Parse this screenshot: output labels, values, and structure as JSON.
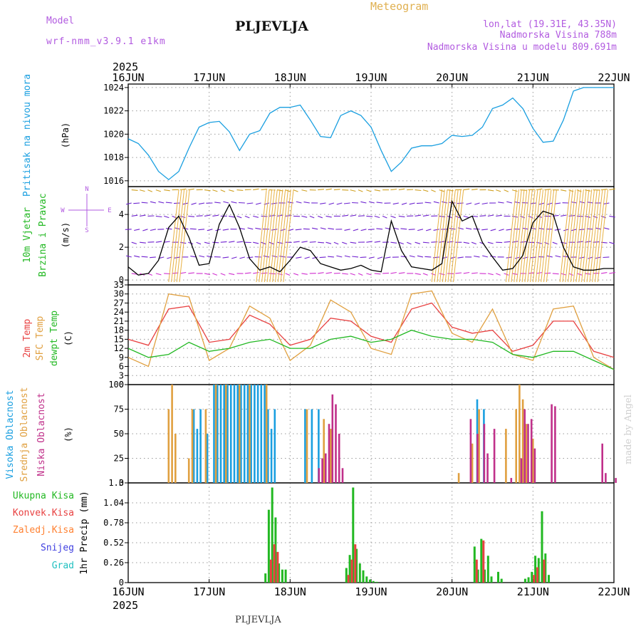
{
  "header": {
    "model_label": "Model",
    "model_name": "wrf-nmm_v3.9.1 e1km",
    "title": "PLJEVLJA",
    "meteogram": "Meteogram",
    "lonlat": "lon,lat (19.31E, 43.35N)",
    "elevation": "Nadmorska Visina 788m",
    "model_elevation": "Nadmorska Visina u modelu 809.691m",
    "year_top": "2025",
    "year_bottom": "2025",
    "footer": "PLJEVLJA",
    "watermark": "made by Angel",
    "colors": {
      "purple": "#b25be0",
      "orange": "#e0b050",
      "title": "#111111"
    }
  },
  "x_ticks": [
    "16JUN",
    "17JUN",
    "18JUN",
    "19JUN",
    "20JUN",
    "21JUN",
    "22JUN"
  ],
  "panels": {
    "pressure": {
      "label": "Pritisak na nivou mora",
      "unit": "(hPa)",
      "label_color": "#1a9fe0"
    },
    "wind": {
      "label1": "10m Vjetar",
      "label2": "Brzina i Pravac",
      "unit": "(m/s)",
      "label_color": "#22b822",
      "compass": [
        "N",
        "W",
        "E",
        "S"
      ],
      "compass_color": "#b25be0"
    },
    "temp": {
      "label1": "2m Temp",
      "label2": "SFC Temp",
      "label3": "dewpt Temp",
      "unit": "(C)",
      "colors": [
        "#e84040",
        "#e0a040",
        "#22b822"
      ]
    },
    "cloud": {
      "label1": "Visoka Oblacnost",
      "label2": "Srednja Oblacnost",
      "label3": "Niska Oblacnost",
      "unit": "(%)",
      "colors": [
        "#1a9fe0",
        "#e0a040",
        "#c0308a"
      ]
    },
    "precip": {
      "labels": [
        "Ukupna Kisa",
        "Konvek.Kisa",
        "Zaledj.Kisa",
        "Snijeg",
        "Grad"
      ],
      "colors": [
        "#22b822",
        "#e84040",
        "#ff8030",
        "#4040e0",
        "#20c0c0"
      ],
      "unit": "1hr Precip (mm)"
    }
  },
  "chart_data": [
    {
      "type": "line",
      "title": "",
      "ylabel": "Pritisak na nivou mora (hPa)",
      "x_range": [
        "2025-06-16 00Z",
        "2025-06-22 00Z"
      ],
      "ylim": [
        1015.5,
        1024.3
      ],
      "yticks": [
        1016,
        1018,
        1020,
        1022,
        1024
      ],
      "series": [
        {
          "name": "Pritisak na nivou mora",
          "color": "#1a9fe0",
          "x_hours": [
            0,
            3,
            6,
            9,
            12,
            15,
            18,
            21,
            24,
            27,
            30,
            33,
            36,
            39,
            42,
            45,
            48,
            51,
            54,
            57,
            60,
            63,
            66,
            69,
            72,
            75,
            78,
            81,
            84,
            87,
            90,
            93,
            96,
            99,
            102,
            105,
            108,
            111,
            114,
            117,
            120,
            123,
            126,
            129,
            132,
            135,
            138,
            141,
            144
          ],
          "values": [
            1019.6,
            1019.2,
            1018.2,
            1016.8,
            1016.1,
            1016.8,
            1018.8,
            1020.6,
            1021.0,
            1021.1,
            1020.2,
            1018.6,
            1020.0,
            1020.3,
            1021.8,
            1022.3,
            1022.3,
            1022.5,
            1021.2,
            1019.8,
            1019.7,
            1021.6,
            1022.0,
            1021.6,
            1020.6,
            1018.6,
            1016.8,
            1017.6,
            1018.8,
            1019.0,
            1019.0,
            1019.2,
            1019.9,
            1019.8,
            1019.9,
            1020.6,
            1022.2,
            1022.5,
            1023.1,
            1022.2,
            1020.5,
            1019.3,
            1019.4,
            1021.2,
            1023.7,
            1024.0,
            1024.0,
            1024.0,
            1024.0
          ]
        }
      ]
    },
    {
      "type": "line",
      "title": "",
      "ylabel": "10m Vjetar Brzina i Pravac (m/s)",
      "ylim": [
        -0.3,
        5.7
      ],
      "yticks": [
        0,
        2,
        4
      ],
      "series": [
        {
          "name": "10m Vjetar",
          "color": "#000000",
          "x_hours": [
            0,
            3,
            6,
            9,
            12,
            15,
            18,
            21,
            24,
            27,
            30,
            33,
            36,
            39,
            42,
            45,
            48,
            51,
            54,
            57,
            60,
            63,
            66,
            69,
            72,
            75,
            78,
            81,
            84,
            87,
            90,
            93,
            96,
            99,
            102,
            105,
            108,
            111,
            114,
            117,
            120,
            123,
            126,
            129,
            132,
            135,
            138,
            141,
            144
          ],
          "values": [
            0.8,
            0.3,
            0.4,
            1.2,
            3.2,
            3.9,
            2.6,
            0.9,
            1.0,
            3.4,
            4.6,
            3.2,
            1.3,
            0.6,
            0.8,
            0.5,
            1.2,
            2.0,
            1.8,
            1.0,
            0.8,
            0.6,
            0.7,
            0.9,
            0.6,
            0.5,
            3.6,
            1.8,
            0.8,
            0.7,
            0.6,
            1.0,
            4.8,
            3.6,
            3.9,
            2.3,
            1.4,
            0.6,
            0.7,
            1.5,
            3.5,
            4.2,
            4.0,
            2.0,
            0.8,
            0.6,
            0.6,
            0.7,
            0.7
          ]
        }
      ]
    },
    {
      "type": "line",
      "title": "",
      "ylabel": "Temp (C)",
      "ylim": [
        0,
        33
      ],
      "yticks": [
        0,
        3,
        6,
        9,
        12,
        15,
        18,
        21,
        24,
        27,
        30,
        33
      ],
      "series": [
        {
          "name": "2m Temp",
          "color": "#e84040",
          "x_hours": [
            0,
            6,
            12,
            18,
            24,
            30,
            36,
            42,
            48,
            54,
            60,
            66,
            72,
            78,
            84,
            90,
            96,
            102,
            108,
            114,
            120,
            126,
            132,
            138,
            144
          ],
          "values": [
            15,
            13,
            25,
            26,
            14,
            15,
            23,
            20,
            13,
            15,
            22,
            21,
            16,
            14,
            25,
            27,
            19,
            17,
            18,
            11,
            13,
            21,
            21,
            11,
            9
          ]
        },
        {
          "name": "SFC Temp",
          "color": "#e0a040",
          "x_hours": [
            0,
            6,
            12,
            18,
            24,
            30,
            36,
            42,
            48,
            54,
            60,
            66,
            72,
            78,
            84,
            90,
            96,
            102,
            108,
            114,
            120,
            126,
            132,
            138,
            144
          ],
          "values": [
            9,
            6,
            30,
            29,
            8,
            12,
            26,
            22,
            8,
            13,
            28,
            24,
            12,
            10,
            30,
            31,
            17,
            14,
            25,
            10,
            8,
            25,
            26,
            9,
            5
          ]
        },
        {
          "name": "dewpt Temp",
          "color": "#22b822",
          "x_hours": [
            0,
            6,
            12,
            18,
            24,
            30,
            36,
            42,
            48,
            54,
            60,
            66,
            72,
            78,
            84,
            90,
            96,
            102,
            108,
            114,
            120,
            126,
            132,
            138,
            144
          ],
          "values": [
            12,
            9,
            10,
            14,
            11,
            12,
            14,
            15,
            12,
            12,
            15,
            16,
            14,
            15,
            18,
            16,
            15,
            15,
            14,
            10,
            9,
            11,
            11,
            8,
            5
          ]
        }
      ]
    },
    {
      "type": "bar",
      "title": "",
      "ylabel": "Oblacnost (%)",
      "ylim": [
        0,
        100
      ],
      "yticks": [
        0,
        25,
        50,
        75,
        100
      ],
      "series": [
        {
          "name": "Visoka Oblacnost",
          "color": "#1a9fe0",
          "x_hours": [
            20,
            21,
            22,
            24,
            26,
            27,
            28,
            29,
            30,
            31,
            32,
            33,
            34,
            35,
            36,
            37,
            38,
            39,
            40,
            41,
            42,
            43,
            44,
            53,
            55,
            57,
            104,
            106
          ],
          "values": [
            75,
            55,
            75,
            50,
            100,
            100,
            100,
            100,
            100,
            100,
            100,
            100,
            100,
            100,
            100,
            100,
            100,
            100,
            100,
            100,
            75,
            55,
            75,
            75,
            75,
            75,
            85,
            75
          ]
        },
        {
          "name": "Srednja Oblacnost",
          "color": "#e0a040",
          "x_hours": [
            12,
            13,
            14,
            18,
            19,
            23,
            26,
            29,
            33,
            36,
            41,
            53,
            58,
            60,
            98,
            102,
            104,
            112,
            115,
            116,
            117,
            118,
            120
          ],
          "values": [
            75,
            100,
            50,
            25,
            75,
            75,
            100,
            100,
            100,
            100,
            100,
            75,
            65,
            55,
            10,
            40,
            75,
            55,
            75,
            100,
            85,
            60,
            45
          ]
        },
        {
          "name": "Niska Oblacnost",
          "color": "#c0308a",
          "x_hours": [
            56,
            57,
            58,
            59,
            60,
            61,
            62,
            63,
            101,
            103,
            105,
            106,
            108,
            113,
            116,
            117,
            118,
            119,
            120,
            125,
            126,
            140,
            141,
            144
          ],
          "values": [
            15,
            25,
            30,
            60,
            90,
            80,
            50,
            15,
            65,
            50,
            60,
            30,
            55,
            5,
            25,
            75,
            60,
            65,
            35,
            80,
            78,
            40,
            10,
            5
          ]
        }
      ]
    },
    {
      "type": "bar",
      "title": "",
      "ylabel": "1hr Precip (mm)",
      "ylim": [
        0,
        1.3
      ],
      "yticks": [
        0,
        0.26,
        0.52,
        0.78,
        1.04,
        1.3
      ],
      "series": [
        {
          "name": "Ukupna Kisa",
          "color": "#22b822",
          "x_hours": [
            41,
            42,
            43,
            44,
            45,
            46,
            47,
            65,
            66,
            67,
            68,
            69,
            70,
            71,
            72,
            73,
            74,
            103,
            104,
            105,
            106,
            107,
            108,
            110,
            111,
            118,
            119,
            120,
            121,
            122,
            123,
            124,
            125
          ],
          "values": [
            0.12,
            0.95,
            1.24,
            0.85,
            0.25,
            0.17,
            0.17,
            0.19,
            0.36,
            1.24,
            0.44,
            0.25,
            0.16,
            0.08,
            0.04,
            0.02,
            0.01,
            0.47,
            0.17,
            0.57,
            0.17,
            0.35,
            0.08,
            0.14,
            0.05,
            0.05,
            0.07,
            0.14,
            0.35,
            0.32,
            0.93,
            0.38,
            0.1
          ]
        },
        {
          "name": "Konvek.Kisa",
          "color": "#e84040",
          "x_hours": [
            42,
            43,
            44,
            65,
            66,
            67,
            103,
            105,
            120,
            121,
            123
          ],
          "values": [
            0.3,
            0.5,
            0.4,
            0.1,
            0.3,
            0.5,
            0.3,
            0.55,
            0.1,
            0.2,
            0.3
          ]
        }
      ]
    }
  ]
}
